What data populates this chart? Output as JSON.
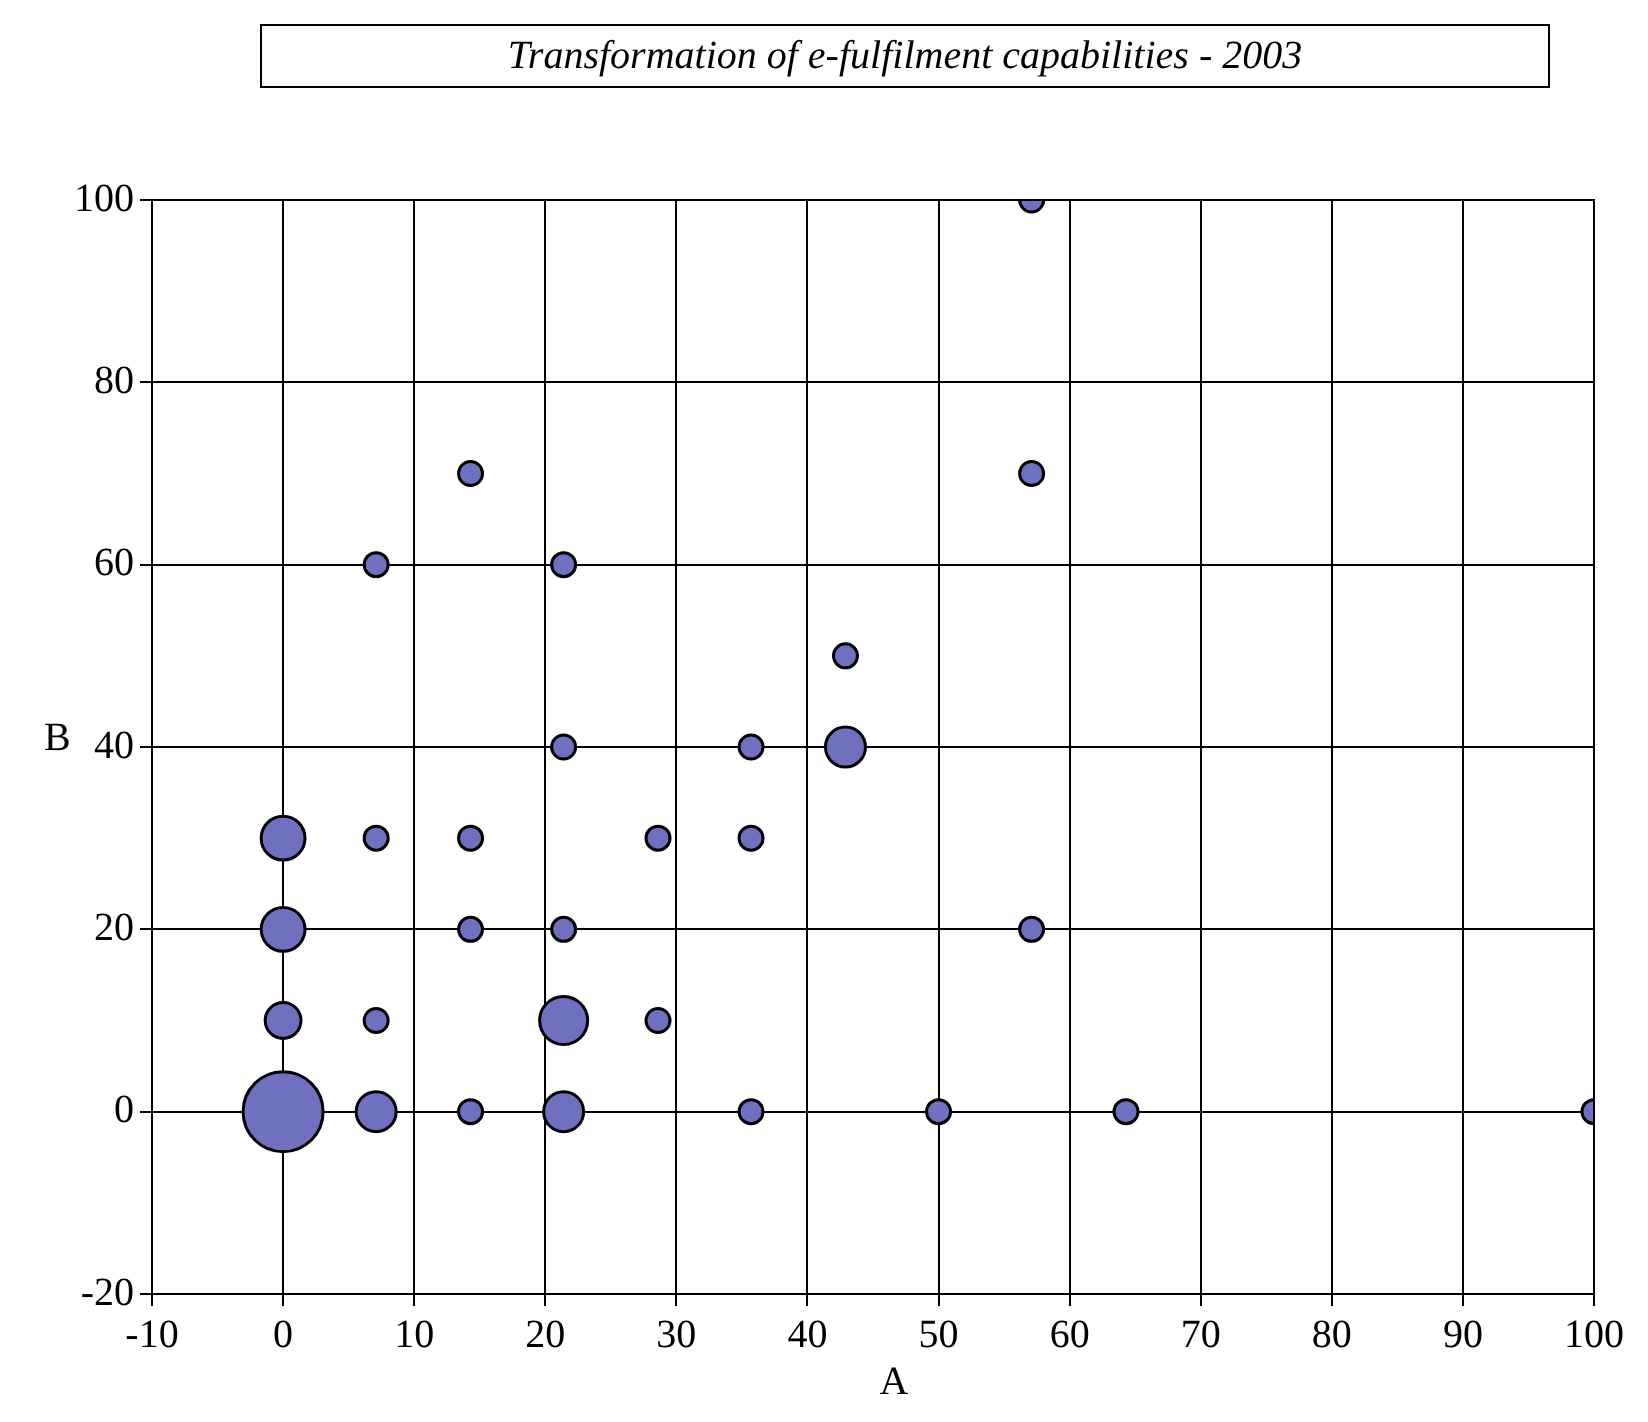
{
  "chart_data": {
    "type": "bubble",
    "title": "Transformation of e-fulfilment capabilities - 2003",
    "xlabel": "A",
    "ylabel": "B",
    "x": [
      57.1,
      57.1,
      14.3,
      7.1,
      21.4,
      42.9,
      21.4,
      35.7,
      42.9,
      0,
      7.1,
      14.3,
      28.6,
      35.7,
      0,
      14.3,
      21.4,
      57.1,
      0,
      7.1,
      21.4,
      28.6,
      0,
      7.1,
      14.3,
      21.4,
      35.7,
      50,
      64.3,
      100
    ],
    "series": [
      {
        "color": "#7070c0",
        "values": [
          100,
          70,
          70,
          60,
          60,
          50,
          40,
          40,
          40,
          30,
          30,
          30,
          30,
          30,
          20,
          20,
          20,
          20,
          10,
          10,
          10,
          10,
          0,
          0,
          0,
          0,
          0,
          0,
          0,
          0
        ],
        "sizes": [
          0.09,
          0.09,
          0.09,
          0.09,
          0.09,
          0.09,
          0.09,
          0.09,
          0.25,
          0.3,
          0.09,
          0.09,
          0.09,
          0.09,
          0.3,
          0.09,
          0.09,
          0.09,
          0.2,
          0.09,
          0.36,
          0.09,
          1,
          0.25,
          0.09,
          0.25,
          0.09,
          0.09,
          0.09,
          0.09
        ]
      }
    ],
    "xlim": [
      -10,
      100
    ],
    "xticks": [
      -10,
      0,
      10,
      20,
      30,
      40,
      50,
      60,
      70,
      80,
      90,
      100
    ],
    "ylim": [
      -20,
      100
    ],
    "yticks": [
      -20,
      0,
      20,
      40,
      60,
      80,
      100
    ],
    "grid": true,
    "legend": false
  }
}
